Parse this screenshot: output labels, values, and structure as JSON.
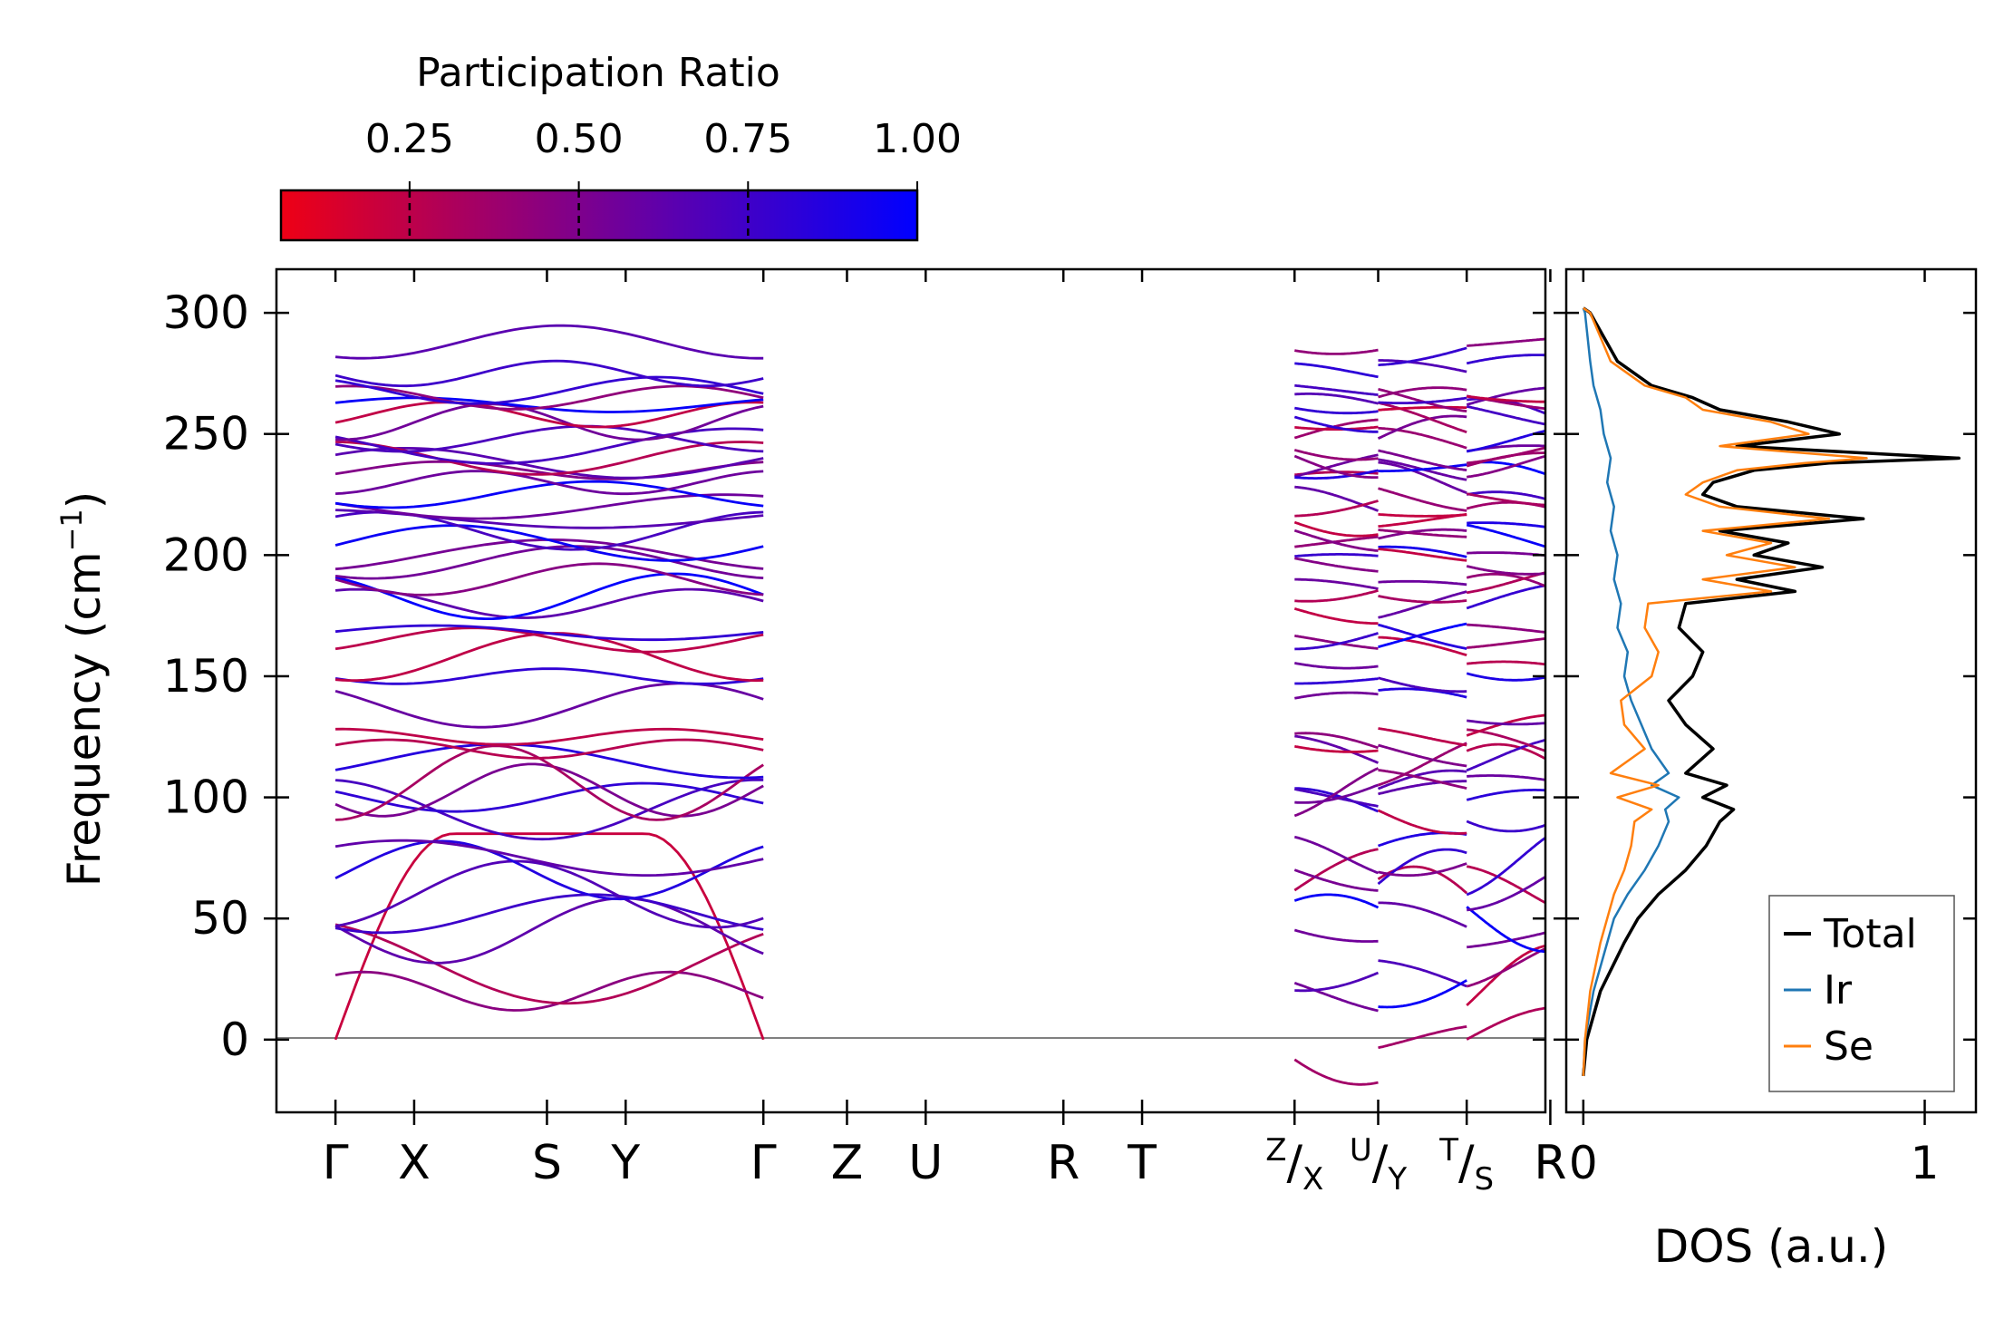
{
  "chart_data": {
    "type": "line",
    "panels": [
      {
        "name": "phonon-band-structure",
        "ylabel_main": "Frequency (cm",
        "ylabel_sup": "−1",
        "ylabel_close": ")",
        "ylim": [
          -30,
          318
        ],
        "yticks": [
          0,
          50,
          100,
          150,
          200,
          250,
          300
        ],
        "xlim": [
          -0.6,
          12.3
        ],
        "segments": [
          [
            0,
            4.35
          ],
          [
            9.75,
            10.6
          ],
          [
            10.6,
            11.5
          ],
          [
            11.5,
            12.4
          ]
        ],
        "path_points": [
          {
            "x": 0,
            "label": "Γ"
          },
          {
            "x": 0.8,
            "label": "X"
          },
          {
            "x": 2.15,
            "label": "S"
          },
          {
            "x": 2.95,
            "label": "Y"
          },
          {
            "x": 4.35,
            "label": "Γ"
          },
          {
            "x": 5.2,
            "label": "Z"
          },
          {
            "x": 6.0,
            "label": "U"
          },
          {
            "x": 7.4,
            "label": "R"
          },
          {
            "x": 8.2,
            "label": "T"
          },
          {
            "x": 9.75,
            "label": "",
            "sup": "Z",
            "sub": "X"
          },
          {
            "x": 10.6,
            "label": "",
            "sup": "U",
            "sub": "Y"
          },
          {
            "x": 11.5,
            "label": "",
            "sup": "T",
            "sub": "S"
          },
          {
            "x": 12.35,
            "label": "R"
          }
        ],
        "branch_frequencies": [
          0,
          20,
          32,
          45,
          52,
          60,
          70,
          75,
          95,
          100,
          103,
          106,
          115,
          120,
          125,
          138,
          150,
          158,
          165,
          168,
          180,
          183,
          190,
          197,
          200,
          205,
          210,
          215,
          220,
          225,
          230,
          235,
          238,
          240,
          245,
          248,
          255,
          258,
          262,
          265,
          268,
          275,
          288
        ]
      },
      {
        "name": "phonon-dos",
        "xlabel": "DOS (a.u.)",
        "xlim": [
          -0.05,
          1.15
        ],
        "xticks": [
          0,
          1
        ],
        "legend": [
          "Total",
          "Ir",
          "Se"
        ],
        "legend_loc": "lower-right",
        "series": [
          {
            "name": "Total",
            "color": "#000000",
            "freq": [
              -15,
              0,
              20,
              40,
              50,
              60,
              70,
              80,
              90,
              95,
              100,
              105,
              110,
              120,
              130,
              140,
              150,
              160,
              170,
              180,
              185,
              190,
              195,
              200,
              205,
              210,
              215,
              220,
              225,
              230,
              235,
              238,
              240,
              245,
              250,
              255,
              260,
              265,
              270,
              280,
              300,
              302
            ],
            "values": [
              0,
              0.01,
              0.05,
              0.12,
              0.16,
              0.22,
              0.3,
              0.36,
              0.4,
              0.44,
              0.35,
              0.42,
              0.3,
              0.38,
              0.3,
              0.25,
              0.32,
              0.35,
              0.28,
              0.3,
              0.62,
              0.45,
              0.7,
              0.5,
              0.6,
              0.4,
              0.82,
              0.45,
              0.35,
              0.38,
              0.5,
              0.72,
              1.1,
              0.45,
              0.75,
              0.6,
              0.4,
              0.32,
              0.2,
              0.1,
              0.02,
              0
            ]
          },
          {
            "name": "Ir",
            "color": "#1f77b4",
            "freq": [
              -15,
              0,
              20,
              40,
              50,
              60,
              70,
              80,
              90,
              95,
              100,
              105,
              110,
              120,
              130,
              140,
              150,
              160,
              170,
              180,
              190,
              200,
              210,
              220,
              230,
              240,
              250,
              260,
              270,
              280,
              300,
              302
            ],
            "values": [
              0,
              0.005,
              0.03,
              0.07,
              0.09,
              0.13,
              0.18,
              0.22,
              0.25,
              0.24,
              0.28,
              0.2,
              0.25,
              0.2,
              0.17,
              0.14,
              0.12,
              0.13,
              0.1,
              0.11,
              0.09,
              0.1,
              0.08,
              0.09,
              0.07,
              0.08,
              0.06,
              0.05,
              0.03,
              0.02,
              0.005,
              0
            ]
          },
          {
            "name": "Se",
            "color": "#ff7f0e",
            "freq": [
              -15,
              0,
              20,
              40,
              50,
              60,
              70,
              80,
              90,
              95,
              100,
              105,
              110,
              120,
              130,
              140,
              150,
              160,
              170,
              180,
              185,
              190,
              195,
              200,
              205,
              210,
              215,
              220,
              225,
              230,
              235,
              238,
              240,
              245,
              250,
              255,
              260,
              265,
              270,
              280,
              300,
              302
            ],
            "values": [
              0,
              0.005,
              0.02,
              0.05,
              0.07,
              0.09,
              0.12,
              0.14,
              0.15,
              0.2,
              0.1,
              0.22,
              0.08,
              0.18,
              0.12,
              0.11,
              0.2,
              0.22,
              0.18,
              0.19,
              0.55,
              0.35,
              0.62,
              0.42,
              0.55,
              0.35,
              0.72,
              0.4,
              0.3,
              0.35,
              0.45,
              0.65,
              0.83,
              0.4,
              0.66,
              0.55,
              0.35,
              0.3,
              0.18,
              0.08,
              0.02,
              0
            ]
          }
        ]
      }
    ],
    "colorbar": {
      "label": "Participation Ratio",
      "ticks": [
        0.25,
        0.5,
        0.75,
        1.0
      ],
      "tick_labels": [
        "0.25",
        "0.50",
        "0.75",
        "1.00"
      ],
      "range": [
        0.06,
        1.0
      ],
      "cmap": [
        "#ee0015",
        "#9a0070",
        "#5a00b0",
        "#0000ff"
      ]
    }
  }
}
